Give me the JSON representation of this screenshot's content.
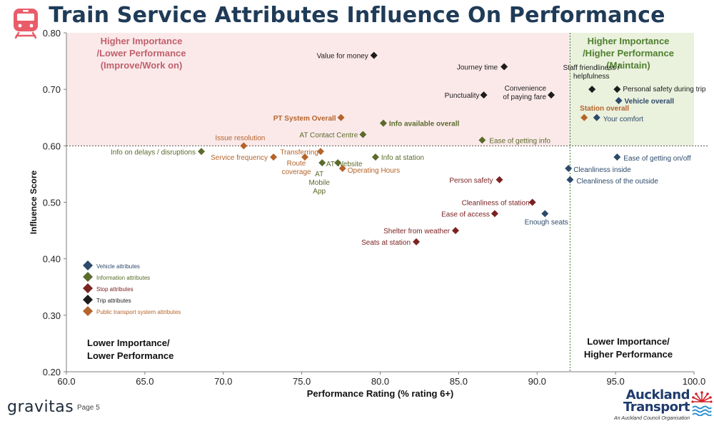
{
  "header": {
    "title": "Train Service Attributes Influence On Performance"
  },
  "footer": {
    "brand": "gravitas",
    "page": "Page 5",
    "logo_line1": "Auckland",
    "logo_line2": "Transport",
    "logo_sub": "An Auckland Council Organisation"
  },
  "icons": {
    "header": "train-icon",
    "logo": "pohutukawa-flower-icon"
  },
  "chart_data": {
    "type": "scatter",
    "xlabel": "Performance Rating (% rating 6+)",
    "ylabel": "Influence Score",
    "xlim": [
      60.0,
      100.0
    ],
    "ylim": [
      0.2,
      0.8
    ],
    "xticks": [
      "60.0",
      "65.0",
      "70.0",
      "75.0",
      "80.0",
      "85.0",
      "90.0",
      "95.0",
      "100.0"
    ],
    "yticks": [
      "0.20",
      "0.30",
      "0.40",
      "0.50",
      "0.60",
      "0.70",
      "0.80"
    ],
    "threshold_x": 92.1,
    "threshold_y": 0.6,
    "quadrants": {
      "top_left": "Higher Importance\n/Lower Performance\n(Improve/Work on)",
      "top_right": "Higher Importance\n/Higher Performance\n(Maintain)",
      "bottom_left": "Lower Importance/\nLower Performance",
      "bottom_right": "Lower Importance/\nHigher Performance"
    },
    "colors": {
      "top_left_fill": "#fbe9ea",
      "top_right_fill": "#eaf1dd",
      "top_left_text": "#c0606c",
      "top_right_text": "#4f7f2e"
    },
    "legend_position": "bottom-left",
    "series": [
      {
        "name": "Vehicle attributes",
        "color": "#2d4a6b",
        "points": [
          {
            "label": "Vehicle overall",
            "x": 95.2,
            "y": 0.68,
            "bold": true
          },
          {
            "label": "Your comfort",
            "x": 93.8,
            "y": 0.65
          },
          {
            "label": "Ease of getting on/off",
            "x": 95.1,
            "y": 0.58
          },
          {
            "label": "Cleanliness inside",
            "x": 92.0,
            "y": 0.56
          },
          {
            "label": "Cleanliness of the outside",
            "x": 92.1,
            "y": 0.54
          },
          {
            "label": "Enough seats",
            "x": 90.5,
            "y": 0.48
          }
        ]
      },
      {
        "name": "Information attributes",
        "color": "#5a6b2a",
        "points": [
          {
            "label": "Info available overall",
            "x": 80.2,
            "y": 0.64,
            "bold": true
          },
          {
            "label": "AT Contact Centre",
            "x": 78.9,
            "y": 0.62
          },
          {
            "label": "Ease of getting info",
            "x": 86.5,
            "y": 0.61
          },
          {
            "label": "Info on delays / disruptions",
            "x": 68.6,
            "y": 0.59
          },
          {
            "label": "Info at station",
            "x": 79.7,
            "y": 0.58
          },
          {
            "label": "AT Mobile App",
            "x": 76.3,
            "y": 0.57
          },
          {
            "label": "AT Website",
            "x": 77.3,
            "y": 0.57
          }
        ]
      },
      {
        "name": "Stop attributes",
        "color": "#7b2222",
        "points": [
          {
            "label": "Person safety",
            "x": 87.6,
            "y": 0.54
          },
          {
            "label": "Cleanliness of station",
            "x": 89.7,
            "y": 0.5
          },
          {
            "label": "Ease of access",
            "x": 87.3,
            "y": 0.48
          },
          {
            "label": "Shelter from weather",
            "x": 84.8,
            "y": 0.45
          },
          {
            "label": "Seats at station",
            "x": 82.3,
            "y": 0.43
          }
        ]
      },
      {
        "name": "Trip attributes",
        "color": "#1c1c1c",
        "points": [
          {
            "label": "Value for money",
            "x": 79.6,
            "y": 0.76
          },
          {
            "label": "Journey time",
            "x": 87.9,
            "y": 0.74
          },
          {
            "label": "Punctuality",
            "x": 86.6,
            "y": 0.69
          },
          {
            "label": "Convenience\nof paying fare",
            "x": 90.9,
            "y": 0.69
          },
          {
            "label": "Staff friendliness /\nhelpfulness",
            "x": 93.5,
            "y": 0.7
          },
          {
            "label": "Personal safety during trip",
            "x": 95.1,
            "y": 0.7
          }
        ]
      },
      {
        "name": "Public transport system attributes",
        "color": "#b5642a",
        "points": [
          {
            "label": "PT System Overall",
            "x": 77.5,
            "y": 0.65,
            "bold": true
          },
          {
            "label": "Station overall",
            "x": 93.0,
            "y": 0.65,
            "bold": true
          },
          {
            "label": "Issue resolution",
            "x": 71.3,
            "y": 0.6
          },
          {
            "label": "Transferring",
            "x": 76.2,
            "y": 0.59
          },
          {
            "label": "Service frequency",
            "x": 73.2,
            "y": 0.58
          },
          {
            "label": "Route\ncoverage",
            "x": 75.2,
            "y": 0.58
          },
          {
            "label": "Operating Hours",
            "x": 77.6,
            "y": 0.56
          }
        ]
      }
    ]
  }
}
